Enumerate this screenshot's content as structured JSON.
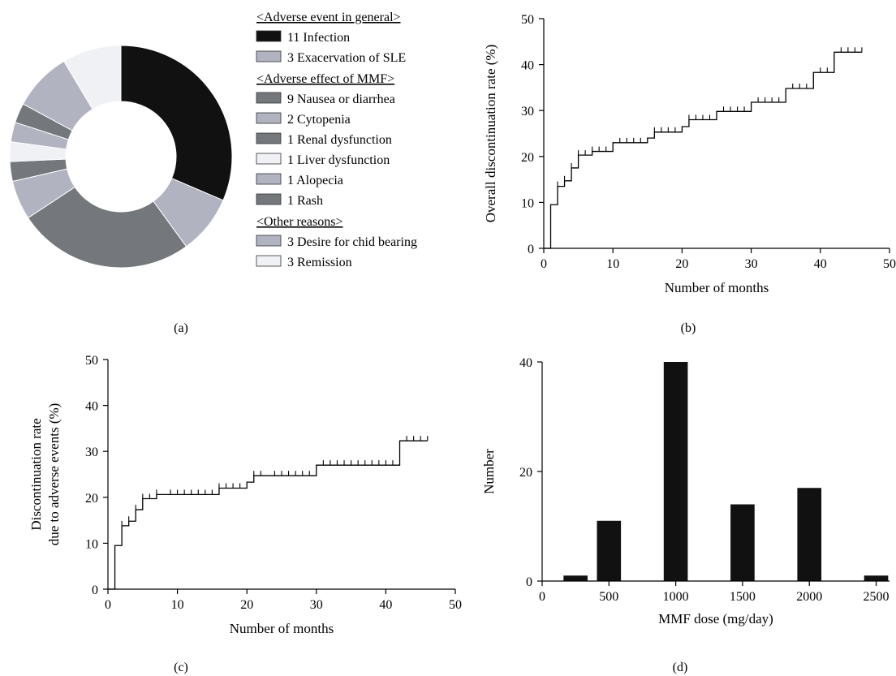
{
  "colors": {
    "infection": "#111111",
    "exacerbation": "#b1b3c0",
    "nausea": "#74777c",
    "cytopenia": "#b1b3c0",
    "renal": "#74777c",
    "liver": "#f0f1f4",
    "alopecia": "#b1b3c0",
    "rash": "#74777c",
    "desire": "#b1b3c0",
    "remission": "#f0f1f4",
    "bar": "#111111",
    "line": "#000000"
  },
  "panels": {
    "a": {
      "label": "(a)"
    },
    "b": {
      "label": "(b)"
    },
    "c": {
      "label": "(c)"
    },
    "d": {
      "label": "(d)"
    }
  },
  "legend": {
    "groups": [
      {
        "heading": "<Adverse event in general>",
        "items": [
          {
            "label": "11 Infection",
            "color_key": "infection"
          },
          {
            "label": "3 Exacervation of SLE",
            "color_key": "exacerbation"
          }
        ]
      },
      {
        "heading": "<Adverse effect of MMF>",
        "items": [
          {
            "label": "9 Nausea or diarrhea",
            "color_key": "nausea"
          },
          {
            "label": "2 Cytopenia",
            "color_key": "cytopenia"
          },
          {
            "label": "1 Renal dysfunction",
            "color_key": "renal"
          },
          {
            "label": "1 Liver dysfunction",
            "color_key": "liver"
          },
          {
            "label": "1 Alopecia",
            "color_key": "alopecia"
          },
          {
            "label": "1 Rash",
            "color_key": "rash"
          }
        ]
      },
      {
        "heading": "<Other reasons>",
        "items": [
          {
            "label": "3 Desire for chid bearing",
            "color_key": "desire"
          },
          {
            "label": "3 Remission",
            "color_key": "remission"
          }
        ]
      }
    ]
  },
  "chart_data": [
    {
      "id": "a",
      "type": "pie",
      "donut": true,
      "slices": [
        {
          "label": "Infection",
          "value": 11,
          "color_key": "infection"
        },
        {
          "label": "Exacervation of SLE",
          "value": 3,
          "color_key": "exacerbation"
        },
        {
          "label": "Nausea or diarrhea",
          "value": 9,
          "color_key": "nausea"
        },
        {
          "label": "Cytopenia",
          "value": 2,
          "color_key": "cytopenia"
        },
        {
          "label": "Renal dysfunction",
          "value": 1,
          "color_key": "renal"
        },
        {
          "label": "Liver dysfunction",
          "value": 1,
          "color_key": "liver"
        },
        {
          "label": "Alopecia",
          "value": 1,
          "color_key": "alopecia"
        },
        {
          "label": "Rash",
          "value": 1,
          "color_key": "rash"
        },
        {
          "label": "Desire for chid bearing",
          "value": 3,
          "color_key": "desire"
        },
        {
          "label": "Remission",
          "value": 3,
          "color_key": "remission"
        }
      ]
    },
    {
      "id": "b",
      "type": "line",
      "step": true,
      "xlabel": "Number of months",
      "ylabel": "Overall discontinuation rate (%)",
      "xlim": [
        0,
        50
      ],
      "ylim": [
        0,
        50
      ],
      "xticks": [
        0,
        10,
        20,
        30,
        40,
        50
      ],
      "yticks": [
        0,
        10,
        20,
        30,
        40,
        50
      ],
      "steps": [
        [
          0,
          0
        ],
        [
          1,
          0
        ],
        [
          1,
          9.5
        ],
        [
          2,
          9.5
        ],
        [
          2,
          13.5
        ],
        [
          3,
          13.5
        ],
        [
          3,
          14.7
        ],
        [
          4,
          14.7
        ],
        [
          4,
          17.5
        ],
        [
          5,
          17.5
        ],
        [
          5,
          20.3
        ],
        [
          7,
          20.3
        ],
        [
          7,
          21.1
        ],
        [
          10,
          21.1
        ],
        [
          10,
          23
        ],
        [
          15,
          23
        ],
        [
          15,
          24
        ],
        [
          16,
          24
        ],
        [
          16,
          25.3
        ],
        [
          20,
          25.3
        ],
        [
          20,
          26.5
        ],
        [
          21,
          26.5
        ],
        [
          21,
          28
        ],
        [
          25,
          28
        ],
        [
          25,
          29.8
        ],
        [
          30,
          29.8
        ],
        [
          30,
          31.8
        ],
        [
          35,
          31.8
        ],
        [
          35,
          34.8
        ],
        [
          39,
          34.8
        ],
        [
          39,
          38.3
        ],
        [
          42,
          38.3
        ],
        [
          42,
          42.7
        ],
        [
          46,
          42.7
        ]
      ],
      "censored": [
        2,
        3,
        4,
        5,
        6,
        7,
        8,
        9,
        11,
        12,
        13,
        14,
        16,
        17,
        18,
        19,
        21,
        22,
        23,
        24,
        26,
        27,
        28,
        29,
        31,
        32,
        33,
        34,
        36,
        37,
        38,
        40,
        41,
        43,
        44,
        45,
        46
      ]
    },
    {
      "id": "c",
      "type": "line",
      "step": true,
      "xlabel": "Number of months",
      "ylabel_lines": [
        "Discontinuation rate",
        "due to adverse events (%)"
      ],
      "xlim": [
        0,
        50
      ],
      "ylim": [
        0,
        50
      ],
      "xticks": [
        0,
        10,
        20,
        30,
        40,
        50
      ],
      "yticks": [
        0,
        10,
        20,
        30,
        40,
        50
      ],
      "steps": [
        [
          0,
          0
        ],
        [
          1,
          0
        ],
        [
          1,
          9.5
        ],
        [
          2,
          9.5
        ],
        [
          2,
          13.8
        ],
        [
          3,
          13.8
        ],
        [
          3,
          14.8
        ],
        [
          4,
          14.8
        ],
        [
          4,
          17.3
        ],
        [
          5,
          17.3
        ],
        [
          5,
          19.7
        ],
        [
          7,
          19.7
        ],
        [
          7,
          20.6
        ],
        [
          16,
          20.6
        ],
        [
          16,
          22
        ],
        [
          20,
          22
        ],
        [
          20,
          23.3
        ],
        [
          21,
          23.3
        ],
        [
          21,
          24.7
        ],
        [
          30,
          24.7
        ],
        [
          30,
          27
        ],
        [
          42,
          27
        ],
        [
          42,
          32.3
        ],
        [
          46,
          32.3
        ]
      ],
      "censored": [
        2,
        3,
        4,
        5,
        6,
        7,
        9,
        10,
        11,
        12,
        13,
        14,
        15,
        16,
        17,
        18,
        19,
        21,
        22,
        24,
        25,
        26,
        27,
        28,
        29,
        31,
        32,
        33,
        34,
        35,
        36,
        37,
        38,
        39,
        40,
        41,
        43,
        44,
        45,
        46
      ]
    },
    {
      "id": "d",
      "type": "bar",
      "xlabel": "MMF dose (mg/day)",
      "ylabel": "Number",
      "xlim": [
        0,
        2600
      ],
      "ylim": [
        0,
        40
      ],
      "xticks": [
        0,
        500,
        1000,
        1500,
        2000,
        2500
      ],
      "yticks": [
        0,
        20,
        40
      ],
      "bar_width": 180,
      "bars": [
        {
          "x": 250,
          "value": 1
        },
        {
          "x": 500,
          "value": 11
        },
        {
          "x": 1000,
          "value": 40
        },
        {
          "x": 1500,
          "value": 14
        },
        {
          "x": 2000,
          "value": 17
        },
        {
          "x": 2500,
          "value": 1
        }
      ]
    }
  ]
}
